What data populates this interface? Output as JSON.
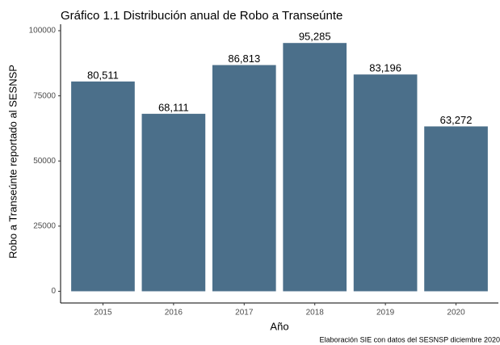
{
  "chart_data": {
    "type": "bar",
    "title": "Gráfico 1.1 Distribución anual de Robo a Transeúnte",
    "x_label": "Año",
    "y_label": "Robo a Transeúnte reportado al SESNSP",
    "caption": "Elaboración SIE con datos del SESNSP diciembre 2020",
    "categories": [
      "2015",
      "2016",
      "2017",
      "2018",
      "2019",
      "2020"
    ],
    "values": [
      80511,
      68111,
      86813,
      95285,
      83196,
      63272
    ],
    "value_labels": [
      "80,511",
      "68,111",
      "86,813",
      "95,285",
      "83,196",
      "63,272"
    ],
    "color": "#4b6f8a",
    "ylim": [
      -4500,
      100000
    ],
    "yticks": [
      0,
      25000,
      50000,
      75000,
      100000
    ],
    "grid": false
  }
}
